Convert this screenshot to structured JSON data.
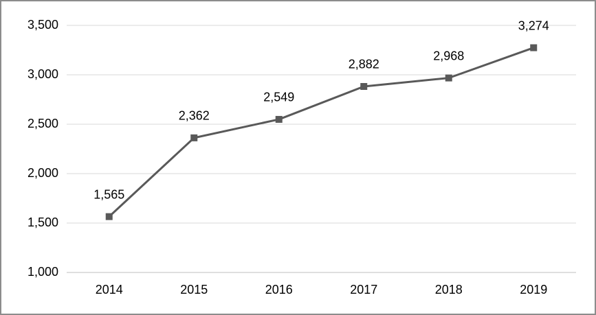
{
  "chart_data": {
    "type": "line",
    "categories": [
      "2014",
      "2015",
      "2016",
      "2017",
      "2018",
      "2019"
    ],
    "values": [
      1565,
      2362,
      2549,
      2882,
      2968,
      3274
    ],
    "value_labels": [
      "1,565",
      "2,362",
      "2,549",
      "2,882",
      "2,968",
      "3,274"
    ],
    "color": "#595959",
    "ylim": [
      1000,
      3500
    ],
    "yticks": [
      {
        "value": 1000,
        "label": "1,000"
      },
      {
        "value": 1500,
        "label": "1,500"
      },
      {
        "value": 2000,
        "label": "2,000"
      },
      {
        "value": 2500,
        "label": "2,500"
      },
      {
        "value": 3000,
        "label": "3,000"
      },
      {
        "value": 3500,
        "label": "3,500"
      }
    ],
    "grid": true
  }
}
